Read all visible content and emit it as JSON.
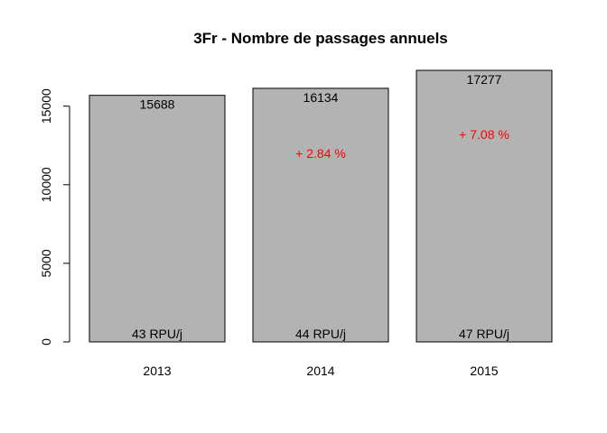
{
  "chart_data": {
    "type": "bar",
    "title": "3Fr - Nombre de passages annuels",
    "categories": [
      "2013",
      "2014",
      "2015"
    ],
    "values": [
      15688,
      16134,
      17277
    ],
    "value_labels": [
      "15688",
      "16134",
      "17277"
    ],
    "change_labels": [
      "",
      "+ 2.84 %",
      "+ 7.08 %"
    ],
    "change_values": [
      null,
      12000,
      13200
    ],
    "rpu_labels": [
      "43 RPU/j",
      "44 RPU/j",
      "47 RPU/j"
    ],
    "yticks": [
      0,
      5000,
      10000,
      15000
    ],
    "ytick_labels": [
      "0",
      "5000",
      "10000",
      "15000"
    ],
    "ylim": [
      0,
      17277
    ],
    "xlabel": "",
    "ylabel": "",
    "grid": false,
    "colors": {
      "bar_fill": "#b3b3b3",
      "bar_stroke": "#000000",
      "change_text": "#ff0000",
      "text": "#000000"
    }
  }
}
